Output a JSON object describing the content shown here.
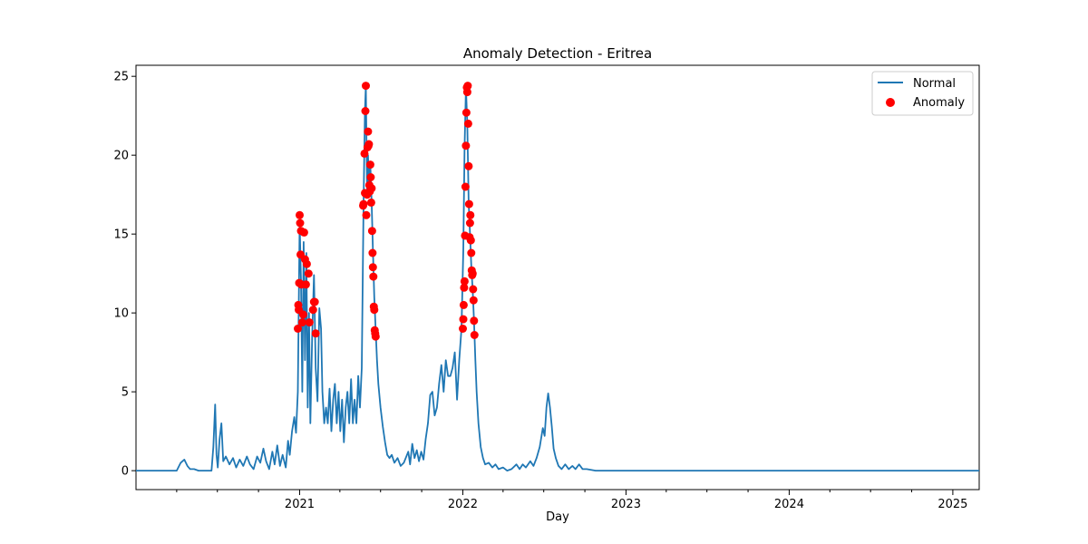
{
  "chart_data": {
    "type": "line",
    "title": "Anomaly Detection - Eritrea",
    "xlabel": "Day",
    "ylabel": "",
    "xlim": [
      "2020-01-01",
      "2025-03-01"
    ],
    "ylim": [
      -1.2,
      25.7
    ],
    "x_ticks": [
      {
        "date": "2021-01-01",
        "label": "2021"
      },
      {
        "date": "2022-01-01",
        "label": "2022"
      },
      {
        "date": "2023-01-01",
        "label": "2023"
      },
      {
        "date": "2024-01-01",
        "label": "2024"
      },
      {
        "date": "2025-01-01",
        "label": "2025"
      }
    ],
    "x_minor_ticks": [
      "2020-04-01",
      "2020-07-01",
      "2020-10-01",
      "2021-04-01",
      "2021-07-01",
      "2021-10-01",
      "2022-04-01",
      "2022-07-01",
      "2022-10-01",
      "2023-04-01",
      "2023-07-01",
      "2023-10-01",
      "2024-04-01",
      "2024-07-01",
      "2024-10-01"
    ],
    "y_ticks": [
      0,
      5,
      10,
      15,
      20,
      25
    ],
    "legend": {
      "position": "top-right",
      "entries": [
        {
          "label": "Normal",
          "kind": "line"
        },
        {
          "label": "Anomaly",
          "kind": "marker"
        }
      ]
    },
    "colors": {
      "normal": "#1f77b4",
      "anomaly": "#ff0000"
    },
    "series": [
      {
        "name": "Normal",
        "points": [
          [
            "2020-01-01",
            0
          ],
          [
            "2020-04-01",
            0
          ],
          [
            "2020-04-10",
            0.5
          ],
          [
            "2020-04-18",
            0.7
          ],
          [
            "2020-04-25",
            0.3
          ],
          [
            "2020-05-01",
            0.1
          ],
          [
            "2020-05-10",
            0.1
          ],
          [
            "2020-05-20",
            0
          ],
          [
            "2020-06-10",
            0
          ],
          [
            "2020-06-18",
            0
          ],
          [
            "2020-06-22",
            1.5
          ],
          [
            "2020-06-26",
            4.2
          ],
          [
            "2020-06-29",
            1.0
          ],
          [
            "2020-07-02",
            0.2
          ],
          [
            "2020-07-06",
            2.0
          ],
          [
            "2020-07-10",
            3.0
          ],
          [
            "2020-07-14",
            0.6
          ],
          [
            "2020-07-20",
            0.9
          ],
          [
            "2020-07-28",
            0.4
          ],
          [
            "2020-08-05",
            0.8
          ],
          [
            "2020-08-12",
            0.2
          ],
          [
            "2020-08-20",
            0.7
          ],
          [
            "2020-08-28",
            0.3
          ],
          [
            "2020-09-05",
            0.9
          ],
          [
            "2020-09-12",
            0.4
          ],
          [
            "2020-09-20",
            0.1
          ],
          [
            "2020-09-28",
            0.9
          ],
          [
            "2020-10-05",
            0.5
          ],
          [
            "2020-10-12",
            1.4
          ],
          [
            "2020-10-18",
            0.6
          ],
          [
            "2020-10-25",
            0.1
          ],
          [
            "2020-11-01",
            1.2
          ],
          [
            "2020-11-06",
            0.4
          ],
          [
            "2020-11-12",
            1.6
          ],
          [
            "2020-11-18",
            0.3
          ],
          [
            "2020-11-24",
            1.0
          ],
          [
            "2020-12-01",
            0.2
          ],
          [
            "2020-12-06",
            1.9
          ],
          [
            "2020-12-10",
            1.0
          ],
          [
            "2020-12-15",
            2.5
          ],
          [
            "2020-12-20",
            3.4
          ],
          [
            "2020-12-24",
            2.4
          ],
          [
            "2020-12-28",
            5.0
          ],
          [
            "2021-01-01",
            15.7
          ],
          [
            "2021-01-04",
            12.0
          ],
          [
            "2021-01-07",
            5.0
          ],
          [
            "2021-01-10",
            14.5
          ],
          [
            "2021-01-13",
            7.0
          ],
          [
            "2021-01-16",
            13.8
          ],
          [
            "2021-01-19",
            4.0
          ],
          [
            "2021-01-22",
            10.0
          ],
          [
            "2021-01-25",
            3.0
          ],
          [
            "2021-01-29",
            8.5
          ],
          [
            "2021-02-02",
            12.4
          ],
          [
            "2021-02-06",
            6.5
          ],
          [
            "2021-02-10",
            4.4
          ],
          [
            "2021-02-14",
            10.3
          ],
          [
            "2021-02-18",
            9.0
          ],
          [
            "2021-02-21",
            5.0
          ],
          [
            "2021-02-25",
            3.0
          ],
          [
            "2021-03-01",
            4.0
          ],
          [
            "2021-03-05",
            3.0
          ],
          [
            "2021-03-09",
            5.2
          ],
          [
            "2021-03-13",
            2.5
          ],
          [
            "2021-03-17",
            4.5
          ],
          [
            "2021-03-21",
            5.5
          ],
          [
            "2021-03-25",
            3.0
          ],
          [
            "2021-03-29",
            5.0
          ],
          [
            "2021-04-02",
            2.5
          ],
          [
            "2021-04-06",
            4.5
          ],
          [
            "2021-04-10",
            1.8
          ],
          [
            "2021-04-14",
            4.0
          ],
          [
            "2021-04-18",
            5.0
          ],
          [
            "2021-04-22",
            3.0
          ],
          [
            "2021-04-26",
            5.8
          ],
          [
            "2021-04-30",
            3.0
          ],
          [
            "2021-05-04",
            4.5
          ],
          [
            "2021-05-08",
            3.0
          ],
          [
            "2021-05-12",
            6.0
          ],
          [
            "2021-05-16",
            4.0
          ],
          [
            "2021-05-20",
            6.5
          ],
          [
            "2021-05-24",
            17.0
          ],
          [
            "2021-05-27",
            22.8
          ],
          [
            "2021-05-29",
            24.4
          ],
          [
            "2021-06-01",
            17.5
          ],
          [
            "2021-06-03",
            20.0
          ],
          [
            "2021-06-05",
            18.0
          ],
          [
            "2021-06-08",
            19.5
          ],
          [
            "2021-06-11",
            17.0
          ],
          [
            "2021-06-14",
            14.0
          ],
          [
            "2021-06-17",
            11.0
          ],
          [
            "2021-06-20",
            9.0
          ],
          [
            "2021-06-23",
            7.0
          ],
          [
            "2021-06-26",
            5.5
          ],
          [
            "2021-07-01",
            4.0
          ],
          [
            "2021-07-06",
            2.8
          ],
          [
            "2021-07-11",
            1.8
          ],
          [
            "2021-07-16",
            1.0
          ],
          [
            "2021-07-21",
            0.8
          ],
          [
            "2021-07-26",
            1.0
          ],
          [
            "2021-08-01",
            0.5
          ],
          [
            "2021-08-08",
            0.8
          ],
          [
            "2021-08-15",
            0.3
          ],
          [
            "2021-08-22",
            0.5
          ],
          [
            "2021-09-01",
            1.2
          ],
          [
            "2021-09-05",
            0.4
          ],
          [
            "2021-09-10",
            1.7
          ],
          [
            "2021-09-15",
            0.8
          ],
          [
            "2021-09-20",
            1.3
          ],
          [
            "2021-09-25",
            0.6
          ],
          [
            "2021-09-30",
            1.2
          ],
          [
            "2021-10-05",
            0.7
          ],
          [
            "2021-10-10",
            2.0
          ],
          [
            "2021-10-15",
            3.0
          ],
          [
            "2021-10-20",
            4.8
          ],
          [
            "2021-10-25",
            5.0
          ],
          [
            "2021-10-30",
            3.5
          ],
          [
            "2021-11-04",
            4.0
          ],
          [
            "2021-11-09",
            5.5
          ],
          [
            "2021-11-14",
            6.7
          ],
          [
            "2021-11-19",
            5.0
          ],
          [
            "2021-11-24",
            7.0
          ],
          [
            "2021-11-29",
            6.0
          ],
          [
            "2021-12-04",
            6.0
          ],
          [
            "2021-12-09",
            6.5
          ],
          [
            "2021-12-14",
            7.5
          ],
          [
            "2021-12-19",
            4.5
          ],
          [
            "2021-12-24",
            7.0
          ],
          [
            "2021-12-29",
            9.0
          ],
          [
            "2022-01-02",
            14.0
          ],
          [
            "2022-01-05",
            20.5
          ],
          [
            "2022-01-08",
            24.3
          ],
          [
            "2022-01-11",
            22.0
          ],
          [
            "2022-01-14",
            17.0
          ],
          [
            "2022-01-17",
            15.0
          ],
          [
            "2022-01-20",
            13.0
          ],
          [
            "2022-01-23",
            11.5
          ],
          [
            "2022-01-26",
            9.5
          ],
          [
            "2022-01-29",
            7.0
          ],
          [
            "2022-02-01",
            5.0
          ],
          [
            "2022-02-05",
            3.0
          ],
          [
            "2022-02-10",
            1.5
          ],
          [
            "2022-02-15",
            0.8
          ],
          [
            "2022-02-20",
            0.4
          ],
          [
            "2022-02-28",
            0.5
          ],
          [
            "2022-03-08",
            0.2
          ],
          [
            "2022-03-15",
            0.4
          ],
          [
            "2022-03-22",
            0.1
          ],
          [
            "2022-04-01",
            0.2
          ],
          [
            "2022-04-10",
            0
          ],
          [
            "2022-04-20",
            0.1
          ],
          [
            "2022-05-01",
            0.4
          ],
          [
            "2022-05-08",
            0.1
          ],
          [
            "2022-05-15",
            0.4
          ],
          [
            "2022-05-22",
            0.2
          ],
          [
            "2022-06-01",
            0.6
          ],
          [
            "2022-06-08",
            0.3
          ],
          [
            "2022-06-15",
            0.8
          ],
          [
            "2022-06-22",
            1.5
          ],
          [
            "2022-06-29",
            2.7
          ],
          [
            "2022-07-03",
            2.2
          ],
          [
            "2022-07-07",
            4.0
          ],
          [
            "2022-07-11",
            4.9
          ],
          [
            "2022-07-15",
            4.0
          ],
          [
            "2022-07-19",
            2.8
          ],
          [
            "2022-07-23",
            1.4
          ],
          [
            "2022-07-28",
            0.8
          ],
          [
            "2022-08-03",
            0.3
          ],
          [
            "2022-08-10",
            0.1
          ],
          [
            "2022-08-18",
            0.4
          ],
          [
            "2022-08-26",
            0.1
          ],
          [
            "2022-09-03",
            0.3
          ],
          [
            "2022-09-10",
            0.1
          ],
          [
            "2022-09-18",
            0.4
          ],
          [
            "2022-09-26",
            0.1
          ],
          [
            "2022-10-05",
            0.1
          ],
          [
            "2022-10-15",
            0.05
          ],
          [
            "2022-10-25",
            0
          ],
          [
            "2025-03-01",
            0
          ]
        ]
      },
      {
        "name": "Anomaly",
        "points": [
          [
            "2020-12-28",
            9.0
          ],
          [
            "2020-12-29",
            10.5
          ],
          [
            "2020-12-30",
            10.2
          ],
          [
            "2020-12-31",
            11.9
          ],
          [
            "2021-01-01",
            16.2
          ],
          [
            "2021-01-02",
            15.7
          ],
          [
            "2021-01-03",
            13.7
          ],
          [
            "2021-01-04",
            15.2
          ],
          [
            "2021-01-05",
            11.8
          ],
          [
            "2021-01-07",
            9.4
          ],
          [
            "2021-01-09",
            9.9
          ],
          [
            "2021-01-11",
            15.1
          ],
          [
            "2021-01-13",
            13.4
          ],
          [
            "2021-01-15",
            11.8
          ],
          [
            "2021-01-17",
            13.1
          ],
          [
            "2021-01-21",
            12.5
          ],
          [
            "2021-01-23",
            9.4
          ],
          [
            "2021-01-31",
            10.2
          ],
          [
            "2021-02-02",
            10.7
          ],
          [
            "2021-02-04",
            10.7
          ],
          [
            "2021-02-06",
            8.7
          ],
          [
            "2021-05-23",
            16.8
          ],
          [
            "2021-05-24",
            16.9
          ],
          [
            "2021-05-27",
            17.6
          ],
          [
            "2021-05-26",
            20.1
          ],
          [
            "2021-05-28",
            22.8
          ],
          [
            "2021-05-29",
            24.4
          ],
          [
            "2021-05-30",
            16.2
          ],
          [
            "2021-06-01",
            17.5
          ],
          [
            "2021-06-02",
            20.5
          ],
          [
            "2021-06-03",
            21.5
          ],
          [
            "2021-06-04",
            20.6
          ],
          [
            "2021-06-05",
            20.7
          ],
          [
            "2021-06-06",
            18.1
          ],
          [
            "2021-06-07",
            17.7
          ],
          [
            "2021-06-08",
            19.4
          ],
          [
            "2021-06-09",
            18.6
          ],
          [
            "2021-06-10",
            17.0
          ],
          [
            "2021-06-11",
            17.9
          ],
          [
            "2021-06-12",
            15.2
          ],
          [
            "2021-06-13",
            13.8
          ],
          [
            "2021-06-14",
            12.9
          ],
          [
            "2021-06-15",
            12.3
          ],
          [
            "2021-06-16",
            10.4
          ],
          [
            "2021-06-17",
            10.2
          ],
          [
            "2021-06-18",
            8.9
          ],
          [
            "2021-06-19",
            8.7
          ],
          [
            "2021-06-20",
            8.5
          ],
          [
            "2022-01-01",
            9.0
          ],
          [
            "2022-01-02",
            9.6
          ],
          [
            "2022-01-03",
            10.5
          ],
          [
            "2022-01-04",
            11.6
          ],
          [
            "2022-01-05",
            12.0
          ],
          [
            "2022-01-06",
            14.9
          ],
          [
            "2022-01-07",
            18.0
          ],
          [
            "2022-01-08",
            20.6
          ],
          [
            "2022-01-09",
            22.7
          ],
          [
            "2022-01-10",
            24.3
          ],
          [
            "2022-01-11",
            24.0
          ],
          [
            "2022-01-12",
            24.4
          ],
          [
            "2022-01-13",
            22.0
          ],
          [
            "2022-01-14",
            19.3
          ],
          [
            "2022-01-15",
            16.9
          ],
          [
            "2022-01-16",
            14.8
          ],
          [
            "2022-01-17",
            15.7
          ],
          [
            "2022-01-18",
            16.2
          ],
          [
            "2022-01-19",
            14.6
          ],
          [
            "2022-01-20",
            13.8
          ],
          [
            "2022-01-21",
            12.7
          ],
          [
            "2022-01-22",
            12.4
          ],
          [
            "2022-01-23",
            12.5
          ],
          [
            "2022-01-24",
            11.5
          ],
          [
            "2022-01-25",
            10.8
          ],
          [
            "2022-01-26",
            9.5
          ],
          [
            "2022-01-27",
            8.6
          ]
        ]
      }
    ]
  }
}
